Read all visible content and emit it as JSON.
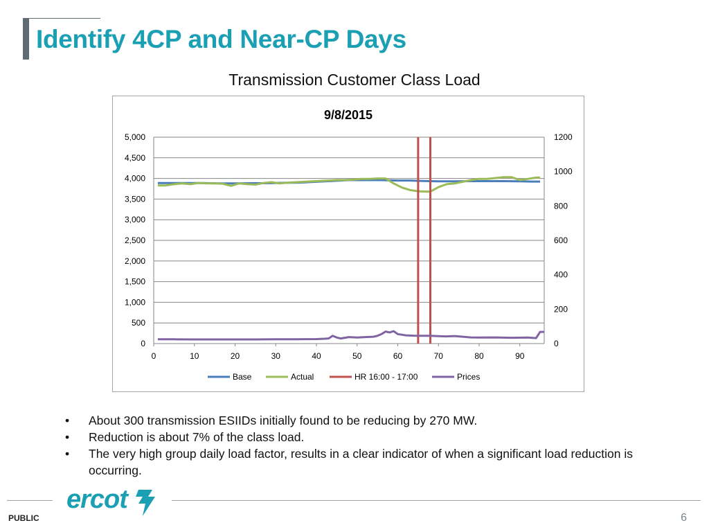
{
  "slide": {
    "title": "Identify 4CP and Near-CP Days",
    "subtitle": "Transmission Customer Class Load",
    "bullets": [
      "About 300 transmission ESIIDs initially found to be reducing by 270 MW.",
      "Reduction is about 7% of the class load.",
      "The very high group daily load factor, results in a clear indicator of when a significant load reduction is occurring."
    ],
    "bullet_symbol": "•",
    "footer": {
      "label": "PUBLIC",
      "page_number": "6",
      "logo_text": "ercot",
      "logo_icon": "ercot-lightning-mark-icon"
    },
    "colors": {
      "title": "#1a9fb3",
      "base": "#4a7ebb",
      "actual": "#9bbb59",
      "hr_marker": "#c0504d",
      "prices": "#8064a2",
      "logo": "#1a9fb3"
    }
  },
  "chart_data": {
    "type": "line",
    "title": "9/8/2015",
    "x_ticks": [
      0,
      10,
      20,
      30,
      40,
      50,
      60,
      70,
      80,
      90
    ],
    "xlim": [
      0,
      96
    ],
    "y_left": {
      "ticks": [
        "0",
        "500",
        "1,000",
        "1,500",
        "2,000",
        "2,500",
        "3,000",
        "3,500",
        "4,000",
        "4,500",
        "5,000"
      ],
      "ylim": [
        0,
        5000
      ]
    },
    "y_right": {
      "ticks": [
        "0",
        "200",
        "400",
        "600",
        "800",
        "1000",
        "1200"
      ],
      "ylim": [
        0,
        1200
      ]
    },
    "legend_position": "bottom",
    "series": [
      {
        "name": "Base",
        "axis": "left",
        "x": [
          1,
          4,
          8,
          12,
          16,
          20,
          24,
          28,
          32,
          36,
          40,
          44,
          48,
          52,
          56,
          60,
          63,
          66,
          70,
          74,
          78,
          82,
          86,
          90,
          93,
          95
        ],
        "y": [
          3890,
          3890,
          3890,
          3890,
          3880,
          3880,
          3885,
          3885,
          3895,
          3900,
          3920,
          3940,
          3960,
          3960,
          3960,
          3950,
          3950,
          3940,
          3930,
          3930,
          3935,
          3935,
          3935,
          3930,
          3925,
          3925
        ]
      },
      {
        "name": "Actual",
        "axis": "left",
        "x": [
          1,
          3,
          5,
          7,
          9,
          11,
          13,
          15,
          17,
          19,
          21,
          23,
          25,
          27,
          29,
          31,
          33,
          35,
          37,
          39,
          41,
          43,
          45,
          47,
          49,
          51,
          53,
          55,
          57,
          59,
          61,
          63,
          65,
          68,
          70,
          72,
          74,
          76,
          78,
          80,
          82,
          84,
          86,
          88,
          90,
          92,
          94,
          95
        ],
        "y": [
          3830,
          3830,
          3860,
          3880,
          3860,
          3890,
          3880,
          3880,
          3870,
          3820,
          3880,
          3860,
          3850,
          3890,
          3910,
          3880,
          3900,
          3910,
          3920,
          3930,
          3940,
          3950,
          3960,
          3960,
          3970,
          3990,
          3990,
          4000,
          4000,
          3880,
          3780,
          3720,
          3690,
          3680,
          3790,
          3860,
          3880,
          3920,
          3960,
          3990,
          3990,
          4010,
          4030,
          4030,
          3960,
          3990,
          4020,
          4020
        ]
      },
      {
        "name": "HR 16:00 - 17:00",
        "axis": "left",
        "kind": "vertical-marker",
        "x": [
          65,
          68
        ]
      },
      {
        "name": "Prices",
        "axis": "right",
        "x": [
          1,
          5,
          10,
          15,
          20,
          25,
          30,
          35,
          40,
          42,
          43,
          44,
          45,
          46,
          47,
          48,
          50,
          52,
          54,
          55,
          56,
          57,
          58,
          59,
          60,
          62,
          64,
          66,
          68,
          70,
          72,
          74,
          76,
          78,
          80,
          84,
          88,
          92,
          94,
          95,
          96
        ],
        "y": [
          25,
          25,
          24,
          24,
          24,
          24,
          25,
          25,
          26,
          28,
          30,
          45,
          35,
          30,
          34,
          38,
          35,
          38,
          40,
          45,
          55,
          70,
          65,
          72,
          55,
          48,
          46,
          45,
          45,
          43,
          42,
          44,
          40,
          36,
          35,
          36,
          34,
          35,
          32,
          68,
          68
        ]
      }
    ]
  }
}
